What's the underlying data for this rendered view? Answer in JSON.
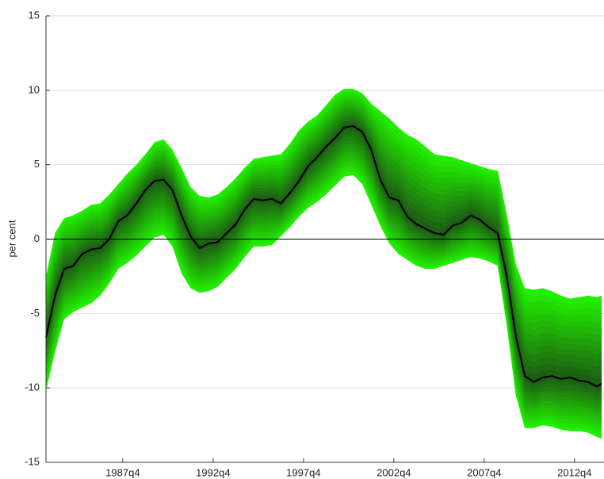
{
  "chart_data": {
    "type": "fan",
    "y_label": "per cent",
    "x": [
      1983.5,
      1984.0,
      1984.5,
      1985.0,
      1985.5,
      1986.0,
      1986.5,
      1987.0,
      1987.5,
      1988.0,
      1988.5,
      1989.0,
      1989.5,
      1990.0,
      1990.5,
      1991.0,
      1991.5,
      1992.0,
      1992.5,
      1993.0,
      1993.5,
      1994.0,
      1994.5,
      1995.0,
      1995.5,
      1996.0,
      1996.5,
      1997.0,
      1997.5,
      1998.0,
      1998.5,
      1999.0,
      1999.5,
      2000.0,
      2000.5,
      2001.0,
      2001.5,
      2002.0,
      2002.5,
      2003.0,
      2003.5,
      2004.0,
      2004.5,
      2005.0,
      2005.5,
      2006.0,
      2006.5,
      2007.0,
      2007.5,
      2008.0,
      2008.5,
      2009.0,
      2009.5,
      2010.0,
      2010.5,
      2011.0,
      2011.5,
      2012.0,
      2012.5,
      2013.0,
      2013.5,
      2014.0,
      2014.25
    ],
    "values": [
      -6.6,
      -3.8,
      -2.0,
      -1.8,
      -1.0,
      -0.7,
      -0.6,
      0.0,
      1.2,
      1.6,
      2.4,
      3.3,
      3.9,
      4.0,
      3.3,
      1.6,
      0.2,
      -0.6,
      -0.3,
      -0.2,
      0.4,
      1.0,
      2.0,
      2.7,
      2.6,
      2.7,
      2.4,
      3.1,
      3.9,
      4.9,
      5.5,
      6.2,
      6.8,
      7.5,
      7.6,
      7.2,
      6.0,
      4.0,
      2.8,
      2.6,
      1.5,
      1.0,
      0.7,
      0.4,
      0.3,
      0.9,
      1.1,
      1.6,
      1.3,
      0.8,
      0.4,
      -2.5,
      -6.5,
      -9.2,
      -9.6,
      -9.3,
      -9.2,
      -9.4,
      -9.3,
      -9.5,
      -9.6,
      -9.9,
      -9.7
    ],
    "band": {
      "upper": [
        -2.5,
        0.4,
        1.4,
        1.6,
        1.9,
        2.3,
        2.4,
        3.0,
        3.7,
        4.4,
        5.0,
        5.7,
        6.5,
        6.7,
        6.0,
        4.8,
        3.5,
        2.9,
        2.8,
        3.0,
        3.5,
        4.1,
        4.8,
        5.4,
        5.5,
        5.6,
        5.7,
        6.4,
        7.3,
        7.9,
        8.3,
        9.0,
        9.7,
        10.1,
        10.1,
        9.8,
        9.1,
        8.6,
        8.1,
        7.5,
        7.0,
        6.7,
        6.2,
        5.7,
        5.6,
        5.5,
        5.3,
        5.1,
        4.9,
        4.7,
        4.6,
        1.7,
        -1.7,
        -3.3,
        -3.4,
        -3.3,
        -3.5,
        -3.8,
        -4.0,
        -3.9,
        -3.8,
        -3.9,
        -3.8
      ],
      "lower": [
        -10.2,
        -7.6,
        -5.4,
        -4.9,
        -4.6,
        -4.3,
        -3.8,
        -3.0,
        -2.0,
        -1.6,
        -1.1,
        -0.5,
        0.1,
        0.3,
        -0.5,
        -2.3,
        -3.3,
        -3.6,
        -3.5,
        -3.2,
        -2.6,
        -2.0,
        -1.2,
        -0.5,
        -0.5,
        -0.4,
        0.2,
        0.8,
        1.5,
        2.1,
        2.5,
        3.0,
        3.6,
        4.2,
        4.3,
        3.7,
        2.3,
        0.9,
        -0.3,
        -1.0,
        -1.4,
        -1.8,
        -2.0,
        -2.0,
        -1.8,
        -1.6,
        -1.4,
        -1.2,
        -1.3,
        -1.5,
        -1.8,
        -5.8,
        -10.5,
        -12.7,
        -12.7,
        -12.5,
        -12.6,
        -12.8,
        -12.9,
        -12.9,
        -13.0,
        -13.3,
        -13.4
      ],
      "outer_color": "#22ee00",
      "inner_color": "#1d5e14"
    },
    "color": "#000000",
    "xlim": [
      1983.5,
      2014.38
    ],
    "xticks": [
      {
        "value": 1987.75,
        "label": "1987q4"
      },
      {
        "value": 1992.75,
        "label": "1992q4"
      },
      {
        "value": 1997.75,
        "label": "1997q4"
      },
      {
        "value": 2002.75,
        "label": "2002q4"
      },
      {
        "value": 2007.75,
        "label": "2007q4"
      },
      {
        "value": 2012.75,
        "label": "2012q4"
      }
    ],
    "ylim": [
      -15,
      15
    ],
    "yticks": [
      -15,
      -10,
      -5,
      0,
      5,
      10,
      15
    ],
    "grid": true,
    "zero_line": true
  }
}
